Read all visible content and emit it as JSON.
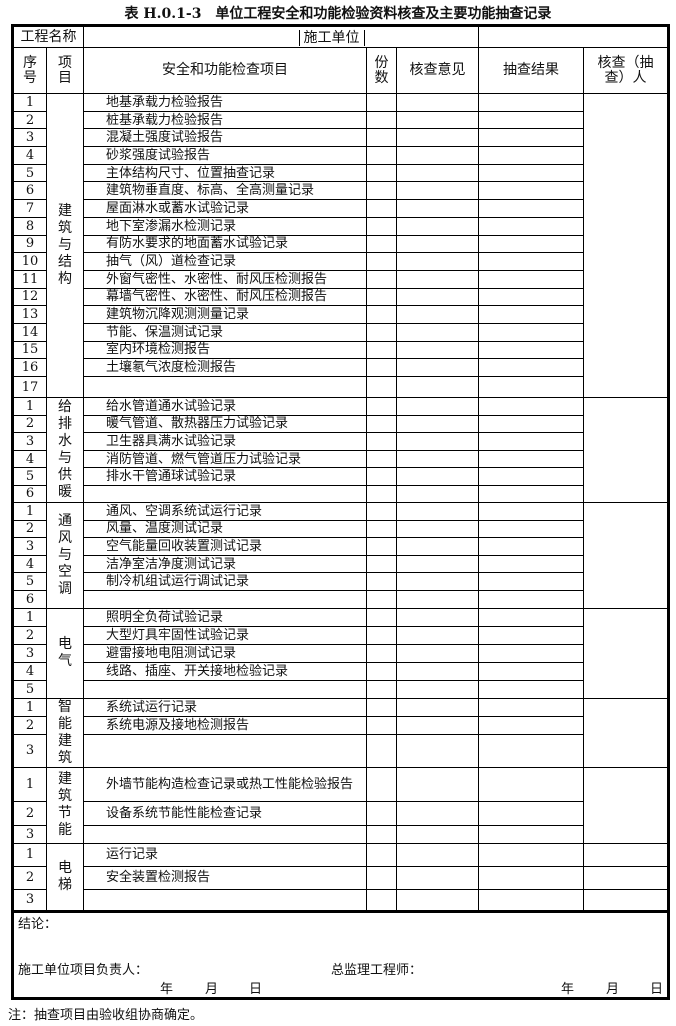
{
  "title": "表 H.0.1-3　单位工程安全和功能检验资料核查及主要功能抽查记录",
  "header": {
    "project_name_label": "工程名称",
    "contractor_label": "施工单位",
    "seq_label": "序号",
    "category_label": "项目",
    "check_item_label": "安全和功能检查项目",
    "copies_label": "份数",
    "review_opinion_label": "核查意见",
    "spot_result_label": "抽查结果",
    "reviewer_label": "核查（抽查）人"
  },
  "sections": [
    {
      "category": "建筑与结构",
      "items": [
        "地基承载力检验报告",
        "桩基承载力检验报告",
        "混凝土强度试验报告",
        "砂浆强度试验报告",
        "主体结构尺寸、位置抽查记录",
        "建筑物垂直度、标高、全高测量记录",
        "屋面淋水或蓄水试验记录",
        "地下室渗漏水检测记录",
        "有防水要求的地面蓄水试验记录",
        "抽气（风）道检查记录",
        "外窗气密性、水密性、耐风压检测报告",
        "幕墙气密性、水密性、耐风压检测报告",
        "建筑物沉降观测测量记录",
        "节能、保温测试记录",
        "室内环境检测报告",
        "土壤氡气浓度检测报告",
        ""
      ]
    },
    {
      "category": "给排水与供暖",
      "items": [
        "给水管道通水试验记录",
        "暖气管道、散热器压力试验记录",
        "卫生器具满水试验记录",
        "消防管道、燃气管道压力试验记录",
        "排水干管通球试验记录",
        ""
      ]
    },
    {
      "category": "通风与空调",
      "items": [
        "通风、空调系统试运行记录",
        "风量、温度测试记录",
        "空气能量回收装置测试记录",
        "洁净室洁净度测试记录",
        "制冷机组试运行调试记录",
        ""
      ]
    },
    {
      "category": "电气",
      "items": [
        "照明全负荷试验记录",
        "大型灯具牢固性试验记录",
        "避雷接地电阻测试记录",
        "线路、插座、开关接地检验记录",
        ""
      ]
    },
    {
      "category": "智能建筑",
      "items": [
        "系统试运行记录",
        "系统电源及接地检测报告",
        ""
      ]
    },
    {
      "category": "建筑节能",
      "items": [
        "外墙节能构造检查记录或热工性能检验报告",
        "设备系统节能性能检查记录",
        ""
      ]
    },
    {
      "category": "电梯",
      "items": [
        "运行记录",
        "安全装置检测报告",
        ""
      ]
    }
  ],
  "footer": {
    "conclusion_label": "结论：",
    "contractor_manager_label": "施工单位项目负责人：",
    "chief_supervisor_label": "总监理工程师：",
    "year": "年",
    "month": "月",
    "day": "日",
    "note": "注：抽查项目由验收组协商确定。"
  }
}
